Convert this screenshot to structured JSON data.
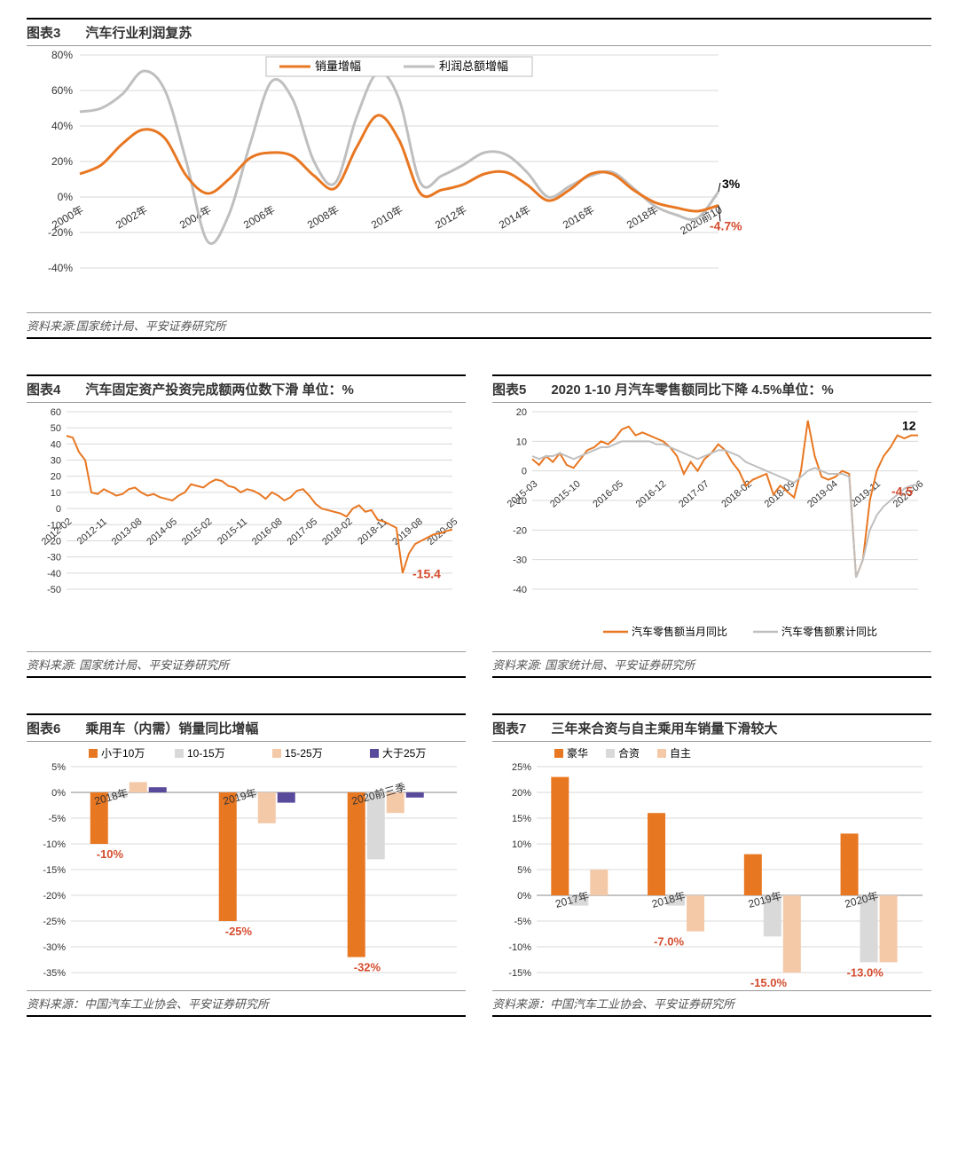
{
  "colors": {
    "orange": "#e87722",
    "gray": "#bfbfbf",
    "lightOrange": "#f4c9a8",
    "purple": "#5a4a9c",
    "lightGray": "#d9d9d9",
    "text": "#333333",
    "calloutRed": "#d54c2e",
    "calloutBlack": "#000000"
  },
  "chart3": {
    "num": "图表3",
    "title": "汽车行业利润复苏",
    "source": "资料来源:国家统计局、平安证券研究所",
    "legend": [
      "销量增幅",
      "利润总额增幅"
    ],
    "x_labels": [
      "2000年",
      "2002年",
      "2004年",
      "2006年",
      "2008年",
      "2010年",
      "2012年",
      "2014年",
      "2016年",
      "2018年",
      "2020前10"
    ],
    "ylim": [
      -40,
      80
    ],
    "ytick_step": 20,
    "series": {
      "sales": [
        13,
        18,
        30,
        38,
        33,
        12,
        2,
        10,
        22,
        25,
        23,
        12,
        5,
        28,
        46,
        32,
        2,
        4,
        7,
        13,
        14,
        7,
        -2,
        4,
        13,
        13,
        4,
        -3,
        -6,
        -8,
        -4.7
      ],
      "profit": [
        48,
        50,
        58,
        71,
        60,
        20,
        -25,
        -10,
        30,
        65,
        55,
        20,
        8,
        45,
        70,
        55,
        8,
        12,
        18,
        25,
        24,
        14,
        0,
        6,
        12,
        14,
        5,
        -5,
        -10,
        -12,
        3
      ]
    },
    "callouts": [
      {
        "text": "3%",
        "color": "calloutBlack",
        "at": "profit_end",
        "dy": -8
      },
      {
        "text": "-4.7%",
        "color": "calloutRed",
        "at": "sales_end",
        "dy": 18
      }
    ]
  },
  "chart4": {
    "num": "图表4",
    "title": "汽车固定资产投资完成额两位数下滑 单位：%",
    "source": "资料来源: 国家统计局、平安证券研究所",
    "x_labels": [
      "2012-02",
      "2012-11",
      "2013-08",
      "2014-05",
      "2015-02",
      "2015-11",
      "2016-08",
      "2017-05",
      "2018-02",
      "2018-11",
      "2019-08",
      "2020-05"
    ],
    "ylim": [
      -50,
      60
    ],
    "ytick_step": 10,
    "values": [
      45,
      44,
      35,
      30,
      10,
      9,
      12,
      10,
      8,
      9,
      12,
      13,
      10,
      8,
      9,
      7,
      6,
      5,
      8,
      10,
      15,
      14,
      13,
      16,
      18,
      17,
      14,
      13,
      10,
      12,
      11,
      9,
      6,
      10,
      8,
      5,
      7,
      11,
      12,
      8,
      3,
      0,
      -1,
      -2,
      -3,
      -5,
      0,
      2,
      -2,
      -1,
      -7,
      -8,
      -10,
      -12,
      -40,
      -28,
      -22,
      -20,
      -18,
      -16,
      -15.4,
      -14,
      -13
    ],
    "callout": {
      "text": "-15.4",
      "color": "calloutRed"
    }
  },
  "chart5": {
    "num": "图表5",
    "title": "2020 1-10 月汽车零售额同比下降 4.5%单位：%",
    "source": "资料来源: 国家统计局、平安证券研究所",
    "legend": [
      "汽车零售额当月同比",
      "汽车零售额累计同比"
    ],
    "x_labels": [
      "2015-03",
      "2015-10",
      "2016-05",
      "2016-12",
      "2017-07",
      "2018-02",
      "2018-09",
      "2019-04",
      "2019-11",
      "2020-06"
    ],
    "ylim": [
      -40,
      20
    ],
    "ytick_step": 10,
    "series": {
      "monthly": [
        4,
        2,
        5,
        3,
        6,
        2,
        1,
        4,
        7,
        8,
        10,
        9,
        11,
        14,
        15,
        12,
        13,
        12,
        11,
        10,
        8,
        5,
        -1,
        3,
        0,
        4,
        6,
        9,
        7,
        3,
        0,
        -5,
        -3,
        -2,
        -1,
        -8,
        -5,
        -7,
        -9,
        0,
        17,
        5,
        -2,
        -3,
        -2,
        0,
        -1,
        -36,
        -30,
        -10,
        0,
        5,
        8,
        12,
        11,
        12,
        12
      ],
      "cumulative": [
        5,
        4,
        5,
        5,
        6,
        5,
        4,
        5,
        6,
        7,
        8,
        8,
        9,
        10,
        10,
        10,
        10,
        10,
        9,
        9,
        8,
        7,
        6,
        5,
        4,
        5,
        6,
        7,
        7,
        6,
        5,
        3,
        2,
        1,
        0,
        -1,
        -2,
        -3,
        -4,
        -2,
        0,
        1,
        0,
        -1,
        -1,
        -1,
        -2,
        -36,
        -30,
        -20,
        -15,
        -12,
        -10,
        -8,
        -6,
        -5,
        -4.5
      ]
    },
    "callouts": [
      {
        "text": "12",
        "color": "calloutBlack"
      },
      {
        "text": "-4.5",
        "color": "calloutRed"
      }
    ]
  },
  "chart6": {
    "num": "图表6",
    "title": "乘用车（内需）销量同比增幅",
    "source": "资料来源：中国汽车工业协会、平安证券研究所",
    "legend": [
      "小于10万",
      "10-15万",
      "15-25万",
      "大于25万"
    ],
    "legend_colors": [
      "orange",
      "lightGray",
      "lightOrange",
      "purple"
    ],
    "categories": [
      "2018年",
      "2019年",
      "2020前三季"
    ],
    "ylim": [
      -35,
      5
    ],
    "ytick_step": 5,
    "data": [
      [
        -10,
        -1,
        2,
        1
      ],
      [
        -25,
        -1,
        -6,
        -2
      ],
      [
        -32,
        -13,
        -4,
        -1
      ]
    ],
    "callouts": [
      "-10%",
      "-25%",
      "-32%"
    ]
  },
  "chart7": {
    "num": "图表7",
    "title": "三年来合资与自主乘用车销量下滑较大",
    "source": "资料来源：中国汽车工业协会、平安证券研究所",
    "legend": [
      "豪华",
      "合资",
      "自主"
    ],
    "legend_colors": [
      "orange",
      "lightGray",
      "lightOrange"
    ],
    "categories": [
      "2017年",
      "2018年",
      "2019年",
      "2020年"
    ],
    "ylim": [
      -15,
      25
    ],
    "ytick_step": 5,
    "data": [
      [
        23,
        -2,
        5
      ],
      [
        16,
        -2,
        -7
      ],
      [
        8,
        -8,
        -15
      ],
      [
        12,
        -13,
        -13
      ]
    ],
    "callouts": [
      null,
      "-7.0%",
      "-15.0%",
      "-13.0%"
    ]
  }
}
